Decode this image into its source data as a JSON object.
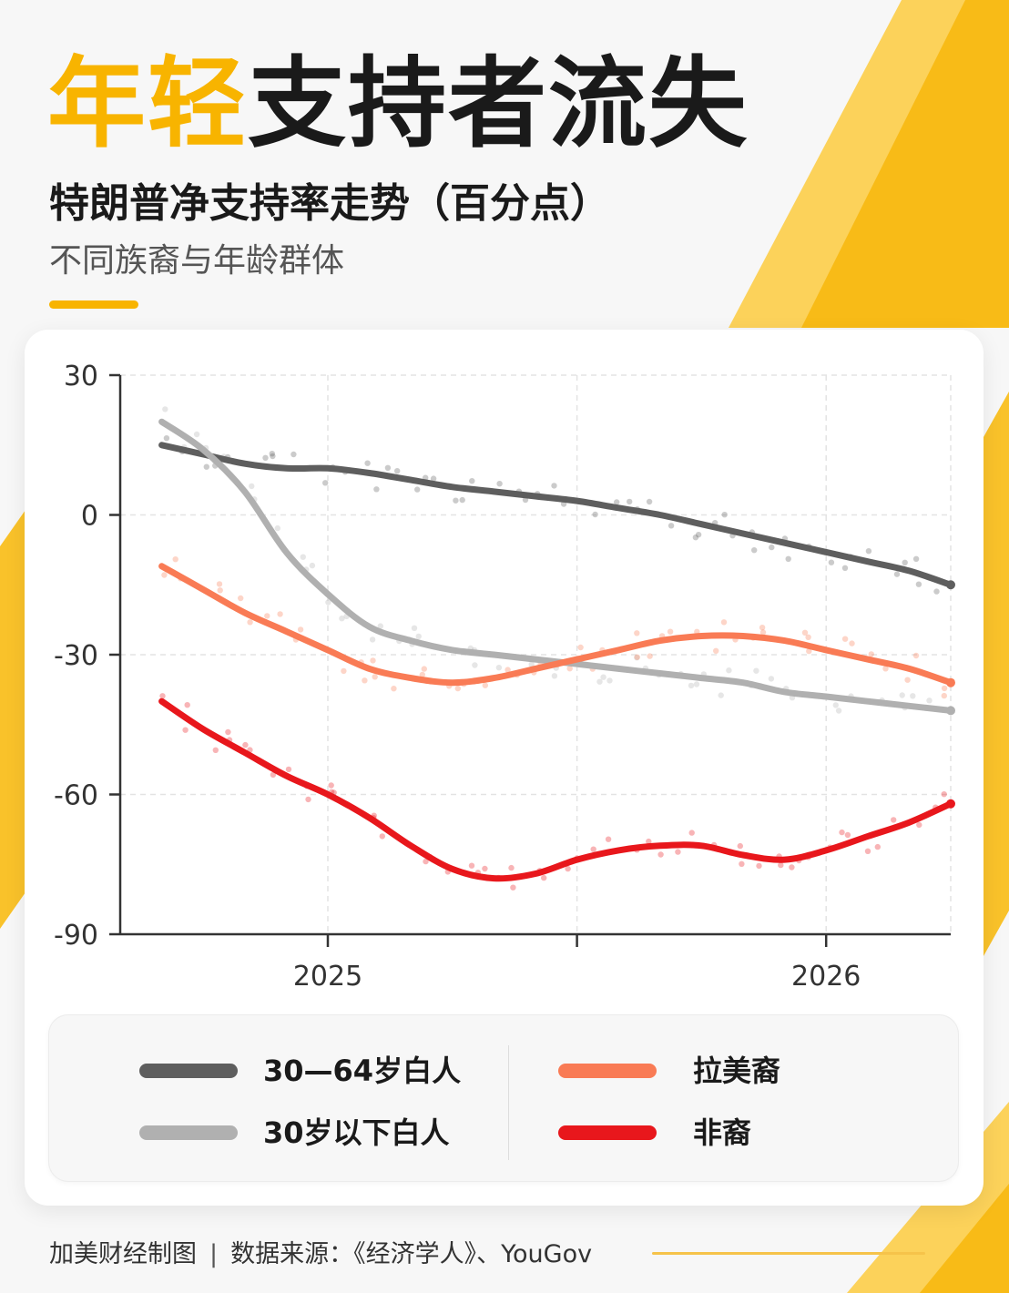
{
  "header": {
    "title_highlight": "年轻",
    "title_rest": "支持者流失",
    "subtitle": "特朗普净支持率走势（百分点）",
    "subnote": "不同族裔与年龄群体"
  },
  "footer": {
    "producer": "加美财经制图",
    "separator": "|",
    "source": "数据来源：《经济学人》、YouGov"
  },
  "colors": {
    "accent": "#f8b400",
    "series_white_30_64": "#5e5e5e",
    "series_white_under_30": "#b0b0b0",
    "series_hispanic": "#f97b55",
    "series_black": "#e8171c"
  },
  "chart_data": {
    "type": "line",
    "title": "特朗普净支持率走势（百分点）",
    "y_unit": "百分点",
    "ylim": [
      -90,
      30
    ],
    "yticks": [
      30,
      0,
      -30,
      -60,
      -90
    ],
    "xlim": [
      "2024-08",
      "2026-04"
    ],
    "xticks": [
      {
        "value": "2025-01",
        "label": "2025"
      },
      {
        "value": "2025-07",
        "label": ""
      },
      {
        "value": "2026-01",
        "label": "2026"
      }
    ],
    "grid": true,
    "legend_position": "bottom",
    "x": [
      "2024-09",
      "2024-10",
      "2024-11",
      "2024-12",
      "2025-01",
      "2025-02",
      "2025-03",
      "2025-04",
      "2025-05",
      "2025-06",
      "2025-07",
      "2025-08",
      "2025-09",
      "2025-10",
      "2025-11",
      "2025-12",
      "2026-01",
      "2026-02",
      "2026-03",
      "2026-04"
    ],
    "series": [
      {
        "name": "30—64岁白人",
        "color": "#5e5e5e",
        "values": [
          15,
          13,
          11,
          10,
          10,
          9,
          7.5,
          6,
          5,
          4,
          3,
          1.5,
          0,
          -2,
          -4,
          -6,
          -8,
          -10,
          -12,
          -15
        ]
      },
      {
        "name": "30岁以下白人",
        "color": "#b0b0b0",
        "values": [
          20,
          14,
          5,
          -8,
          -17,
          -24,
          -27,
          -29,
          -30,
          -31,
          -32,
          -33,
          -34,
          -35,
          -36,
          -38,
          -39,
          -40,
          -41,
          -42
        ]
      },
      {
        "name": "拉美裔",
        "color": "#f97b55",
        "values": [
          -11,
          -16,
          -21,
          -25,
          -29,
          -33,
          -35,
          -36,
          -35,
          -33,
          -31,
          -29,
          -27,
          -26,
          -26,
          -27,
          -29,
          -31,
          -33,
          -36
        ]
      },
      {
        "name": "非裔",
        "color": "#e8171c",
        "values": [
          -40,
          -46,
          -51,
          -56,
          -60,
          -65,
          -71,
          -76,
          -78,
          -77,
          -74,
          -72,
          -71,
          -71,
          -73,
          -74,
          -72,
          -69,
          -66,
          -62
        ]
      }
    ]
  }
}
